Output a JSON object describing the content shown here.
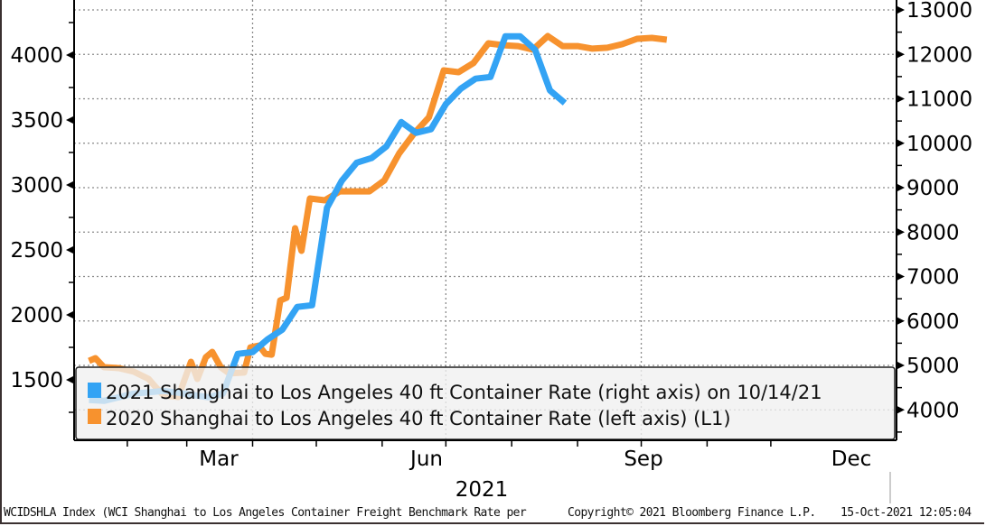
{
  "chart_data": {
    "type": "line",
    "title": "",
    "xlabel": "2021",
    "x_tick_labels": [
      "Mar",
      "Jun",
      "Sep",
      "Dec"
    ],
    "year_label": "2021",
    "left_axis": {
      "ticks": [
        1500,
        2000,
        2500,
        3000,
        3500,
        4000
      ],
      "range": [
        1200,
        4350
      ]
    },
    "right_axis": {
      "ticks": [
        4000,
        5000,
        6000,
        7000,
        8000,
        9000,
        10000,
        11000,
        12000,
        13000
      ],
      "range": [
        3300,
        13200
      ]
    },
    "grid": true,
    "legend_position": "bottom-left",
    "series": [
      {
        "name": "2021 Shanghai to Los Angeles 40 ft Container Rate (right axis) on 10/14/21",
        "axis": "right",
        "color": "#33a3f4",
        "points": [
          [
            "Jan 14",
            4223
          ],
          [
            "Jan 21",
            4203
          ],
          [
            "Jan 28",
            4284
          ],
          [
            "Feb 04",
            4365
          ],
          [
            "Feb 18",
            4426
          ],
          [
            "Feb 25",
            4386
          ],
          [
            "Mar 11",
            4284
          ],
          [
            "Mar 18",
            4365
          ],
          [
            "Mar 25",
            5259
          ],
          [
            "Apr 01",
            5299
          ],
          [
            "Apr 08",
            5584
          ],
          [
            "Apr 15",
            5807
          ],
          [
            "Apr 22",
            6315
          ],
          [
            "Apr 29",
            6355
          ],
          [
            "May 06",
            8548
          ],
          [
            "May 13",
            9157
          ],
          [
            "May 20",
            9563
          ],
          [
            "May 27",
            9665
          ],
          [
            "Jun 03",
            9929
          ],
          [
            "Jun 10",
            10477
          ],
          [
            "Jun 17",
            10234
          ],
          [
            "Jun 24",
            10315
          ],
          [
            "Jul 01",
            10883
          ],
          [
            "Jul 08",
            11228
          ],
          [
            "Jul 15",
            11452
          ],
          [
            "Jul 22",
            11492
          ],
          [
            "Jul 29",
            12406
          ],
          [
            "Aug 05",
            12406
          ],
          [
            "Aug 12",
            12102
          ],
          [
            "Aug 19",
            11188
          ],
          [
            "Aug 26",
            10904
          ]
        ]
      },
      {
        "name": "2020 Shanghai to Los Angeles 40 ft Container Rate (left axis) (L1)",
        "axis": "left",
        "color": "#f7922e",
        "points": [
          [
            "Jan 14",
            1646
          ],
          [
            "Jan 17",
            1667
          ],
          [
            "Jan 21",
            1597
          ],
          [
            "Jan 28",
            1590
          ],
          [
            "Feb 04",
            1563
          ],
          [
            "Feb 11",
            1507
          ],
          [
            "Feb 14",
            1451
          ],
          [
            "Feb 18",
            1382
          ],
          [
            "Feb 25",
            1368
          ],
          [
            "Mar 03",
            1639
          ],
          [
            "Mar 06",
            1507
          ],
          [
            "Mar 10",
            1674
          ],
          [
            "Mar 13",
            1715
          ],
          [
            "Mar 17",
            1597
          ],
          [
            "Mar 21",
            1549
          ],
          [
            "Mar 28",
            1556
          ],
          [
            "Mar 31",
            1750
          ],
          [
            "Apr 04",
            1764
          ],
          [
            "Apr 07",
            1701
          ],
          [
            "Apr 10",
            1694
          ],
          [
            "Apr 14",
            2111
          ],
          [
            "Apr 17",
            2132
          ],
          [
            "Apr 21",
            2667
          ],
          [
            "Apr 24",
            2493
          ],
          [
            "Apr 28",
            2896
          ],
          [
            "May 05",
            2882
          ],
          [
            "May 12",
            2951
          ],
          [
            "May 19",
            2951
          ],
          [
            "May 26",
            2951
          ],
          [
            "Jun 02",
            3035
          ],
          [
            "Jun 09",
            3243
          ],
          [
            "Jun 16",
            3396
          ],
          [
            "Jun 23",
            3521
          ],
          [
            "Jun 30",
            3882
          ],
          [
            "Jul 07",
            3868
          ],
          [
            "Jul 14",
            3938
          ],
          [
            "Jul 21",
            4090
          ],
          [
            "Jul 28",
            4076
          ],
          [
            "Aug 04",
            4069
          ],
          [
            "Aug 11",
            4042
          ],
          [
            "Aug 18",
            4146
          ],
          [
            "Aug 25",
            4069
          ],
          [
            "Sep 01",
            4069
          ],
          [
            "Sep 08",
            4049
          ],
          [
            "Sep 15",
            4056
          ],
          [
            "Sep 22",
            4083
          ],
          [
            "Sep 29",
            4125
          ],
          [
            "Oct 06",
            4132
          ],
          [
            "Oct 13",
            4118
          ]
        ]
      }
    ]
  },
  "footer": {
    "source": "WCIDSHLA Index (WCI Shanghai to Los Angeles Container Freight Benchmark Rate per",
    "copyright": "Copyright© 2021 Bloomberg Finance L.P.",
    "timestamp": "15-Oct-2021 12:05:04"
  }
}
